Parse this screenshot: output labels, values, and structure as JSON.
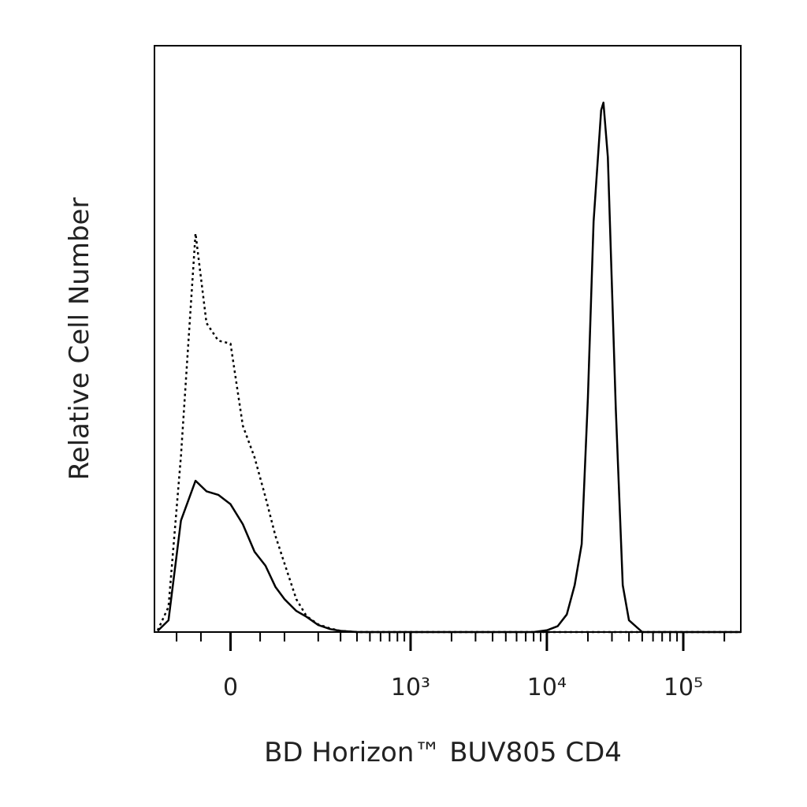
{
  "chart_data": {
    "type": "line",
    "xlabel": "BD Horizon™ BUV805 CD4",
    "ylabel": "Relative Cell Number",
    "xscale": "biexponential",
    "xlim": [
      -160,
      264000
    ],
    "ylim": [
      0,
      100
    ],
    "xticks": [
      {
        "value": 0,
        "label": "0"
      },
      {
        "value": 1000,
        "label": "10³"
      },
      {
        "value": 10000,
        "label": "10⁴"
      },
      {
        "value": 100000,
        "label": "10⁵"
      }
    ],
    "xminor_ticks": [
      -100,
      -50,
      50,
      100,
      200,
      300,
      400,
      500,
      600,
      700,
      800,
      900,
      2000,
      3000,
      4000,
      5000,
      6000,
      7000,
      8000,
      9000,
      20000,
      30000,
      40000,
      50000,
      60000,
      70000,
      80000,
      90000,
      200000
    ],
    "x": [
      -150,
      -120,
      -90,
      -60,
      -40,
      -20,
      0,
      20,
      40,
      60,
      80,
      100,
      130,
      160,
      200,
      250,
      300,
      400,
      500,
      700,
      1000,
      2000,
      5000,
      8000,
      10000,
      12000,
      14000,
      16000,
      18000,
      20000,
      22000,
      25000,
      26000,
      28000,
      32000,
      36000,
      40000,
      50000,
      60000,
      100000,
      200000,
      264000
    ],
    "series": [
      {
        "color": "#000000",
        "dash": false,
        "values": [
          0.2,
          2,
          19,
          25.8,
          24,
          23.4,
          21.8,
          18.4,
          13.7,
          11.3,
          7.7,
          5.6,
          3.6,
          2.6,
          1.2,
          0.5,
          0.2,
          0,
          0,
          0,
          0,
          0,
          0,
          0,
          0.3,
          1,
          3,
          8,
          15,
          40,
          70,
          89,
          90.3,
          81,
          38,
          8,
          2,
          0,
          0,
          0,
          0,
          0
        ]
      },
      {
        "color": "#000000",
        "dash": true,
        "values": [
          0.3,
          4.3,
          30,
          68,
          52.7,
          49.7,
          49.2,
          35.2,
          29.8,
          23,
          16.4,
          11.7,
          5.6,
          2.7,
          1.3,
          0.6,
          0.2,
          0,
          0,
          0,
          0,
          0,
          0,
          0,
          0,
          0,
          0,
          0,
          0,
          0,
          0,
          0,
          0,
          0,
          0,
          0,
          0,
          0,
          0,
          0,
          0,
          0
        ]
      }
    ]
  }
}
